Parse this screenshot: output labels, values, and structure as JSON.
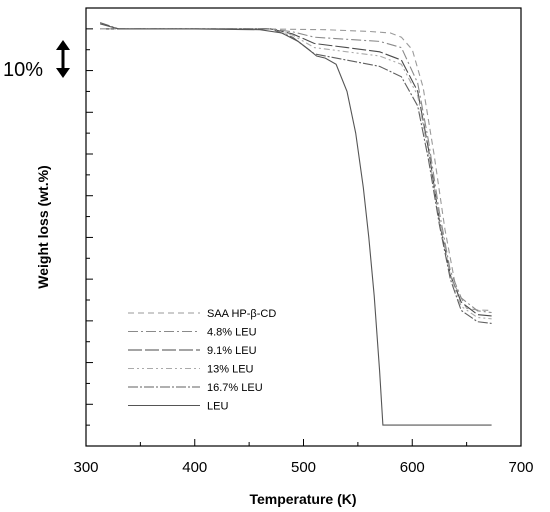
{
  "chart_data": {
    "type": "line",
    "xlabel": "Temperature (K)",
    "ylabel": "Weight loss (wt.%)",
    "xlim": [
      300,
      700
    ],
    "xticks": [
      300,
      400,
      500,
      600,
      700
    ],
    "y_tick_labels": "none",
    "scale_bar_label": "10%",
    "scale_bar_value": 10,
    "legend_position": "bottom-left",
    "grid": false,
    "series": [
      {
        "name": "SAA HP-β-CD",
        "dash": "6,4",
        "color": "#9a9a9a",
        "x": [
          313,
          330,
          400,
          460,
          520,
          560,
          580,
          590,
          600,
          610,
          620,
          630,
          640,
          650,
          660,
          673
        ],
        "y": [
          100.0,
          100.0,
          100.0,
          100.0,
          99.8,
          99.4,
          99.0,
          98.0,
          95.0,
          86.0,
          70.0,
          52.0,
          38.0,
          33.0,
          32.6,
          32.5
        ]
      },
      {
        "name": "4.8% LEU",
        "dash": "10,3,2,3",
        "color": "#8a8a8a",
        "x": [
          313,
          330,
          400,
          470,
          490,
          510,
          540,
          570,
          590,
          605,
          615,
          625,
          635,
          645,
          660,
          673
        ],
        "y": [
          100.0,
          100.0,
          100.0,
          100.0,
          99.3,
          98.0,
          97.5,
          97.0,
          95.5,
          87.0,
          73.0,
          56.0,
          42.0,
          35.5,
          32.4,
          32.0
        ]
      },
      {
        "name": "9.1% LEU",
        "dash": "14,3",
        "color": "#4a4a4a",
        "x": [
          313,
          330,
          400,
          470,
          490,
          510,
          540,
          570,
          590,
          605,
          615,
          625,
          635,
          645,
          660,
          673
        ],
        "y": [
          100.0,
          100.0,
          100.0,
          100.0,
          98.8,
          96.5,
          95.5,
          94.5,
          92.5,
          85.0,
          71.0,
          54.0,
          41.0,
          34.5,
          31.5,
          31.2
        ]
      },
      {
        "name": "13% LEU",
        "dash": "6,3,2,3,2,3",
        "color": "#aaaaaa",
        "x": [
          313,
          330,
          400,
          470,
          490,
          510,
          540,
          570,
          590,
          605,
          615,
          625,
          635,
          645,
          660,
          673
        ],
        "y": [
          100.0,
          100.0,
          100.0,
          100.0,
          98.5,
          95.5,
          94.5,
          93.5,
          91.5,
          84.0,
          70.0,
          54.0,
          41.0,
          33.5,
          30.8,
          30.5
        ]
      },
      {
        "name": "16.7% LEU",
        "dash": "10,2,2,2",
        "color": "#606060",
        "x": [
          313,
          330,
          400,
          470,
          490,
          510,
          540,
          570,
          590,
          605,
          615,
          625,
          635,
          645,
          660,
          673
        ],
        "y": [
          101.5,
          100.0,
          100.0,
          100.0,
          98.0,
          94.0,
          92.5,
          91.0,
          88.5,
          81.5,
          68.5,
          53.0,
          40.0,
          32.5,
          29.8,
          29.4
        ]
      },
      {
        "name": "LEU",
        "dash": "",
        "color": "#555555",
        "x": [
          313,
          330,
          400,
          460,
          480,
          495,
          505,
          512,
          520,
          530,
          540,
          548,
          555,
          560,
          565,
          570,
          573,
          600,
          673
        ],
        "y": [
          101.2,
          100.0,
          100.0,
          99.8,
          99.0,
          97.0,
          95.0,
          93.5,
          93.0,
          91.5,
          85.0,
          75.0,
          62.0,
          50.0,
          36.0,
          18.0,
          5.0,
          5.0,
          5.0
        ]
      }
    ]
  }
}
